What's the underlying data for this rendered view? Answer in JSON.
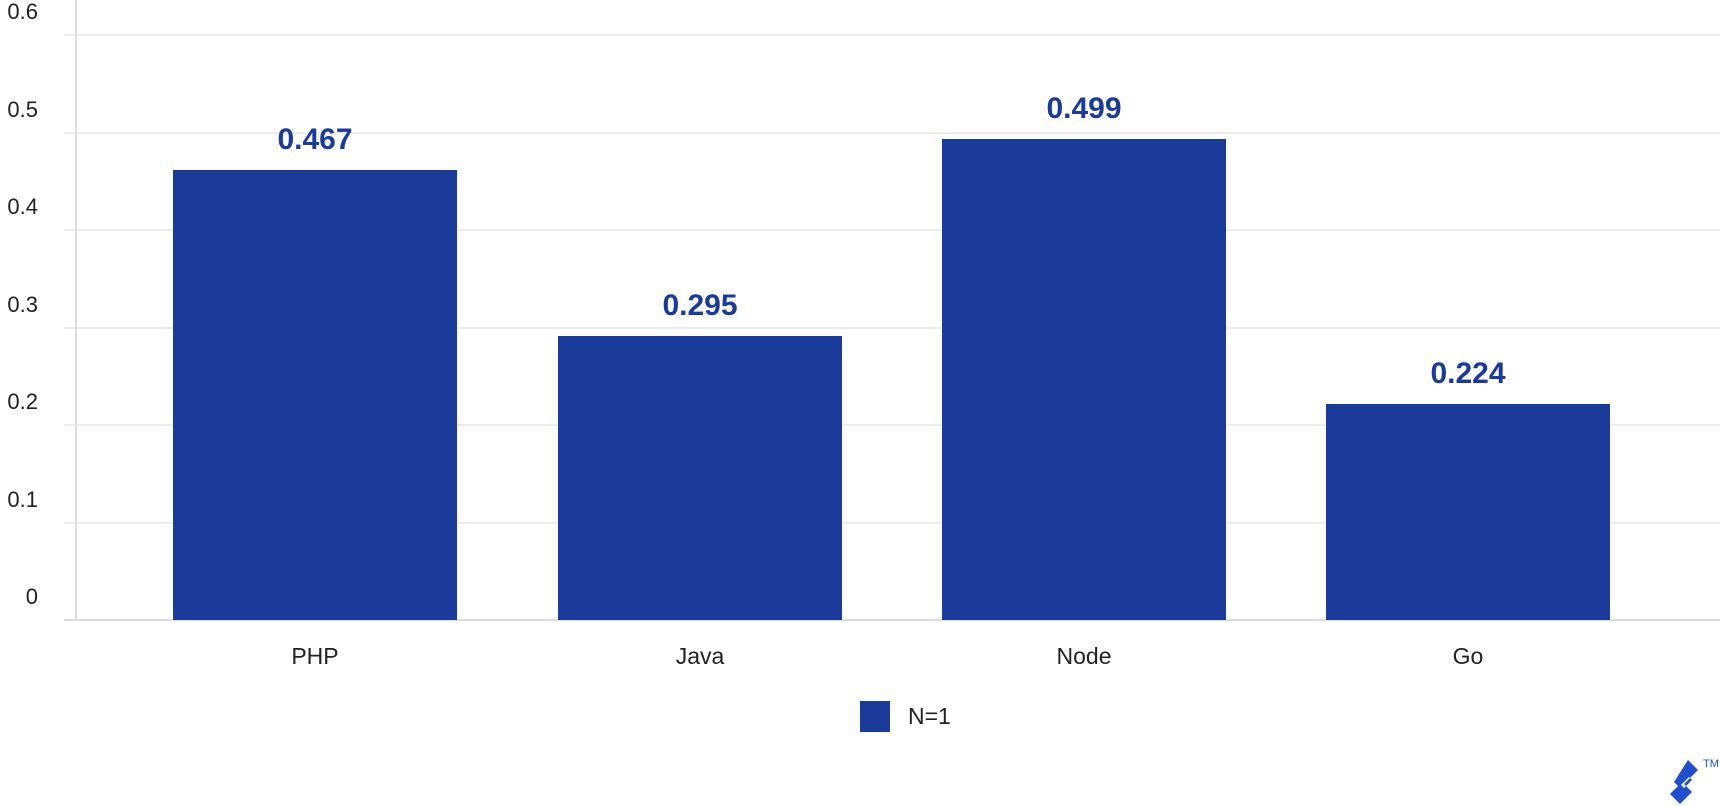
{
  "chart_data": {
    "type": "bar",
    "title": "",
    "xlabel": "",
    "ylabel": "",
    "categories": [
      "PHP",
      "Java",
      "Node",
      "Go"
    ],
    "series": [
      {
        "name": "N=1",
        "values": [
          0.467,
          0.295,
          0.499,
          0.224
        ],
        "color": "#1a3a9c"
      }
    ],
    "value_labels": [
      "0.467",
      "0.295",
      "0.499",
      "0.224"
    ],
    "ylim": [
      0,
      0.6
    ],
    "yticks": [
      "0",
      "0.1",
      "0.2",
      "0.3",
      "0.4",
      "0.5",
      "0.6"
    ],
    "grid": true,
    "legend": {
      "position": "bottom",
      "entries": [
        "N=1"
      ]
    }
  },
  "branding": {
    "logo": "toptal-logo-icon",
    "trademark": "TM",
    "color": "#204ecf"
  }
}
